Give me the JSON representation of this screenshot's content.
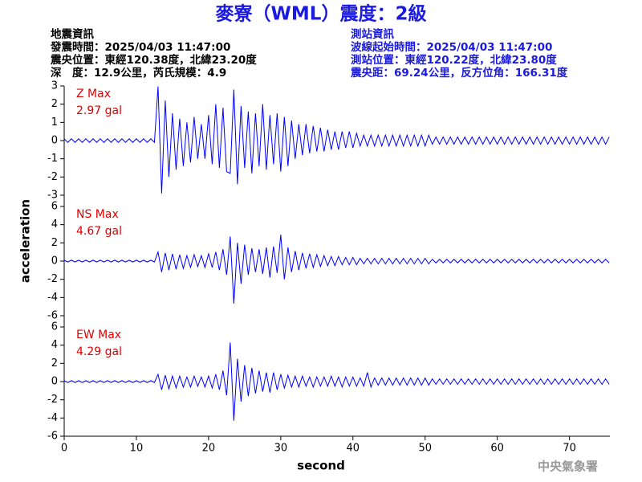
{
  "chart_data": {
    "type": "line",
    "title": "麥寮（WML）震度：2級",
    "info_left": [
      "地震資訊",
      "發震時間：2025/04/03 11:47:00",
      "震央位置：東經120.38度，北緯23.20度",
      "深　度：12.9公里，芮氏規模：4.9"
    ],
    "info_right": [
      "測站資訊",
      "波線起始時間：2025/04/03 11:47:00",
      "測站位置：東經120.22度，北緯23.80度",
      "震央距：69.24公里，反方位角：166.31度"
    ],
    "xlabel": "second",
    "ylabel": "acceleration",
    "credit": "中央氣象署",
    "xlim": [
      0,
      75.6
    ],
    "xticks": [
      0,
      10,
      20,
      30,
      40,
      50,
      60,
      70
    ],
    "x": [
      0,
      0.5,
      1,
      1.5,
      2,
      2.5,
      3,
      3.5,
      4,
      4.5,
      5,
      5.5,
      6,
      6.5,
      7,
      7.5,
      8,
      8.5,
      9,
      9.5,
      10,
      10.5,
      11,
      11.5,
      12,
      12.5,
      13,
      13.5,
      14,
      14.5,
      15,
      15.5,
      16,
      16.5,
      17,
      17.5,
      18,
      18.5,
      19,
      19.5,
      20,
      20.5,
      21,
      21.5,
      22,
      22.5,
      23,
      23.5,
      24,
      24.5,
      25,
      25.5,
      26,
      26.5,
      27,
      27.5,
      28,
      28.5,
      29,
      29.5,
      30,
      30.5,
      31,
      31.5,
      32,
      32.5,
      33,
      33.5,
      34,
      34.5,
      35,
      35.5,
      36,
      36.5,
      37,
      37.5,
      38,
      38.5,
      39,
      39.5,
      40,
      40.5,
      41,
      41.5,
      42,
      42.5,
      43,
      43.5,
      44,
      44.5,
      45,
      45.5,
      46,
      46.5,
      47,
      47.5,
      48,
      48.5,
      49,
      49.5,
      50,
      50.5,
      51,
      51.5,
      52,
      52.5,
      53,
      53.5,
      54,
      54.5,
      55,
      55.5,
      56,
      56.5,
      57,
      57.5,
      58,
      58.5,
      59,
      59.5,
      60,
      60.5,
      61,
      61.5,
      62,
      62.5,
      63,
      63.5,
      64,
      64.5,
      65,
      65.5,
      66,
      66.5,
      67,
      67.5,
      68,
      68.5,
      69,
      69.5,
      70,
      70.5,
      71,
      71.5,
      72,
      72.5,
      73,
      73.5,
      74,
      74.5,
      75,
      75.5
    ],
    "series": [
      {
        "name": "Z Max",
        "annotation": "2.97 gal",
        "color": "#0000ff",
        "annotation_color": "#e00000",
        "ylim": [
          -3,
          3
        ],
        "yticks": [
          -3,
          -2,
          -1,
          0,
          1,
          2,
          3
        ],
        "values": [
          0.1,
          -0.1,
          0.1,
          -0.1,
          0.1,
          -0.1,
          0.1,
          -0.1,
          0.1,
          -0.1,
          0.1,
          -0.1,
          0.1,
          -0.1,
          0.1,
          -0.1,
          0.1,
          -0.1,
          0.1,
          -0.1,
          0.1,
          -0.1,
          0.1,
          -0.1,
          0.1,
          -0.1,
          2.97,
          -2.9,
          2.2,
          -2.0,
          1.5,
          -1.6,
          1.2,
          -1.4,
          1.0,
          -1.2,
          1.3,
          -1.0,
          0.9,
          -1.0,
          1.4,
          -1.3,
          2.0,
          -1.5,
          1.8,
          -1.7,
          -1.8,
          2.8,
          -2.4,
          1.9,
          -1.5,
          1.6,
          -1.8,
          1.5,
          -1.4,
          2.0,
          -1.6,
          1.4,
          -1.3,
          1.5,
          -1.7,
          1.3,
          -1.4,
          1.1,
          -1.0,
          0.9,
          -0.8,
          0.9,
          -0.7,
          0.8,
          -0.6,
          0.7,
          -0.6,
          0.6,
          -0.5,
          0.5,
          -0.5,
          0.5,
          -0.4,
          0.5,
          -0.4,
          0.4,
          -0.3,
          0.3,
          -0.3,
          0.3,
          -0.3,
          0.3,
          -0.3,
          0.3,
          -0.3,
          0.3,
          -0.3,
          0.3,
          -0.3,
          0.3,
          -0.3,
          0.3,
          -0.3,
          0.3,
          -0.3,
          0.3,
          -0.2,
          0.2,
          -0.2,
          0.2,
          -0.2,
          0.2,
          -0.2,
          0.2,
          -0.2,
          0.2,
          -0.2,
          0.2,
          -0.2,
          0.2,
          -0.2,
          0.2,
          -0.2,
          0.2,
          -0.2,
          0.2,
          -0.2,
          0.2,
          -0.2,
          0.2,
          -0.2,
          0.2,
          -0.2,
          0.2,
          -0.2,
          0.2,
          -0.2,
          0.2,
          -0.2,
          0.2,
          -0.2,
          0.2,
          -0.2,
          0.2,
          -0.2,
          0.2,
          -0.2,
          0.2,
          -0.2,
          0.2,
          -0.2,
          0.2,
          -0.2,
          0.2,
          -0.2,
          0.2
        ]
      },
      {
        "name": "NS Max",
        "annotation": "4.67 gal",
        "color": "#0000ff",
        "annotation_color": "#e00000",
        "ylim": [
          -6,
          6
        ],
        "yticks": [
          -6,
          -4,
          -2,
          0,
          2,
          4,
          6
        ],
        "values": [
          0.1,
          -0.1,
          0.1,
          -0.1,
          0.1,
          -0.1,
          0.1,
          -0.1,
          0.1,
          -0.1,
          0.1,
          -0.1,
          0.1,
          -0.1,
          0.1,
          -0.1,
          0.1,
          -0.1,
          0.1,
          -0.1,
          0.1,
          -0.1,
          0.1,
          -0.1,
          0.1,
          -0.1,
          1.0,
          -1.2,
          0.9,
          -1.0,
          0.8,
          -0.9,
          0.7,
          -0.8,
          0.6,
          -0.7,
          0.7,
          -0.6,
          0.6,
          -0.7,
          0.8,
          -0.7,
          1.0,
          -1.0,
          1.3,
          -1.5,
          2.7,
          -4.67,
          2.0,
          -2.5,
          1.8,
          -1.5,
          1.4,
          -1.2,
          1.3,
          -1.4,
          1.5,
          -1.8,
          1.6,
          -1.3,
          2.9,
          -2.0,
          1.5,
          -1.2,
          1.1,
          -1.0,
          0.9,
          -0.8,
          0.8,
          -0.7,
          0.7,
          -0.6,
          0.6,
          -0.5,
          0.5,
          -0.5,
          0.5,
          -0.4,
          0.4,
          -0.4,
          0.4,
          -0.4,
          0.3,
          -0.3,
          0.3,
          -0.3,
          0.3,
          -0.3,
          0.3,
          -0.3,
          0.3,
          -0.3,
          0.3,
          -0.3,
          0.3,
          -0.3,
          0.3,
          -0.3,
          0.3,
          -0.3,
          0.3,
          -0.3,
          0.2,
          -0.2,
          0.2,
          -0.2,
          0.2,
          -0.2,
          0.2,
          -0.2,
          0.2,
          -0.2,
          0.2,
          -0.2,
          0.2,
          -0.2,
          0.2,
          -0.2,
          0.2,
          -0.2,
          0.2,
          -0.2,
          0.2,
          -0.2,
          0.2,
          -0.2,
          0.2,
          -0.2,
          0.2,
          -0.2,
          0.2,
          -0.2,
          0.2,
          -0.2,
          0.2,
          -0.2,
          0.2,
          -0.2,
          0.2,
          -0.2,
          0.2,
          -0.2,
          0.2,
          -0.2,
          0.2,
          -0.2,
          0.2,
          -0.2,
          0.2,
          -0.2,
          0.2,
          -0.2
        ]
      },
      {
        "name": "EW Max",
        "annotation": "4.29 gal",
        "color": "#0000ff",
        "annotation_color": "#e00000",
        "ylim": [
          -6,
          6
        ],
        "yticks": [
          -6,
          -4,
          -2,
          0,
          2,
          4,
          6
        ],
        "values": [
          0.1,
          -0.1,
          0.1,
          -0.1,
          0.1,
          -0.1,
          0.1,
          -0.1,
          0.1,
          -0.1,
          0.1,
          -0.1,
          0.1,
          -0.1,
          0.1,
          -0.1,
          0.1,
          -0.1,
          0.1,
          -0.1,
          0.1,
          -0.1,
          0.1,
          -0.1,
          0.1,
          -0.1,
          0.8,
          -0.9,
          0.7,
          -0.8,
          0.6,
          -0.7,
          0.6,
          -0.6,
          0.5,
          -0.6,
          0.6,
          -0.5,
          0.5,
          -0.6,
          0.6,
          -0.7,
          0.8,
          -0.9,
          1.2,
          -1.5,
          4.29,
          -4.3,
          2.5,
          -2.2,
          1.8,
          -1.6,
          1.5,
          -1.3,
          1.2,
          -1.1,
          1.0,
          -1.2,
          1.0,
          -0.9,
          0.8,
          -0.7,
          0.7,
          -0.6,
          0.6,
          -0.6,
          0.6,
          -0.5,
          0.5,
          -0.6,
          0.5,
          -0.5,
          0.5,
          -0.5,
          0.6,
          -0.5,
          0.5,
          -0.6,
          0.5,
          -0.5,
          0.5,
          -0.5,
          0.4,
          -0.5,
          1.0,
          -0.6,
          0.4,
          -0.4,
          0.4,
          -0.4,
          0.4,
          -0.4,
          0.4,
          -0.4,
          0.4,
          -0.4,
          0.4,
          -0.4,
          0.4,
          -0.4,
          0.4,
          -0.4,
          0.3,
          -0.3,
          0.3,
          -0.3,
          0.3,
          -0.3,
          0.3,
          -0.3,
          0.3,
          -0.3,
          0.3,
          -0.3,
          0.3,
          -0.3,
          0.3,
          -0.3,
          0.3,
          -0.3,
          0.3,
          -0.3,
          0.3,
          -0.3,
          0.3,
          -0.3,
          0.3,
          -0.3,
          0.3,
          -0.3,
          0.3,
          -0.3,
          0.3,
          -0.3,
          0.3,
          -0.3,
          0.3,
          -0.3,
          0.3,
          -0.3,
          0.3,
          -0.3,
          0.3,
          -0.3,
          0.3,
          -0.3,
          0.3,
          -0.3,
          0.3,
          -0.3,
          0.3,
          -0.3
        ]
      }
    ]
  }
}
